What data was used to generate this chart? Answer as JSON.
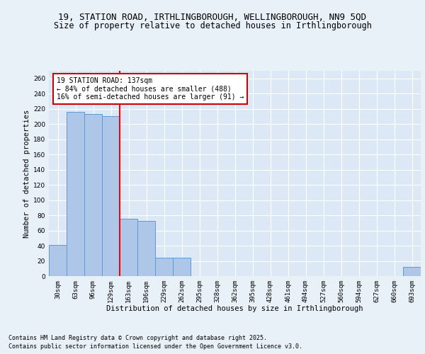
{
  "title": "19, STATION ROAD, IRTHLINGBOROUGH, WELLINGBOROUGH, NN9 5QD",
  "subtitle": "Size of property relative to detached houses in Irthlingborough",
  "xlabel": "Distribution of detached houses by size in Irthlingborough",
  "ylabel": "Number of detached properties",
  "categories": [
    "30sqm",
    "63sqm",
    "96sqm",
    "129sqm",
    "163sqm",
    "196sqm",
    "229sqm",
    "262sqm",
    "295sqm",
    "328sqm",
    "362sqm",
    "395sqm",
    "428sqm",
    "461sqm",
    "494sqm",
    "527sqm",
    "560sqm",
    "594sqm",
    "627sqm",
    "660sqm",
    "693sqm"
  ],
  "values": [
    41,
    216,
    213,
    210,
    75,
    73,
    24,
    24,
    0,
    0,
    0,
    0,
    0,
    0,
    0,
    0,
    0,
    0,
    0,
    0,
    12
  ],
  "bar_color": "#aec6e8",
  "bar_edge_color": "#5b9bd5",
  "red_line_x": 3.5,
  "annotation_title": "19 STATION ROAD: 137sqm",
  "annotation_line1": "← 84% of detached houses are smaller (488)",
  "annotation_line2": "16% of semi-detached houses are larger (91) →",
  "annotation_box_color": "#ffffff",
  "annotation_box_edge": "#cc0000",
  "ylim": [
    0,
    270
  ],
  "yticks": [
    0,
    20,
    40,
    60,
    80,
    100,
    120,
    140,
    160,
    180,
    200,
    220,
    240,
    260
  ],
  "footer_line1": "Contains HM Land Registry data © Crown copyright and database right 2025.",
  "footer_line2": "Contains public sector information licensed under the Open Government Licence v3.0.",
  "background_color": "#e8f0f8",
  "plot_background": "#dce8f5",
  "grid_color": "#ffffff",
  "title_fontsize": 9,
  "subtitle_fontsize": 8.5,
  "axis_label_fontsize": 7.5,
  "tick_fontsize": 6.5,
  "annotation_fontsize": 7,
  "footer_fontsize": 6
}
